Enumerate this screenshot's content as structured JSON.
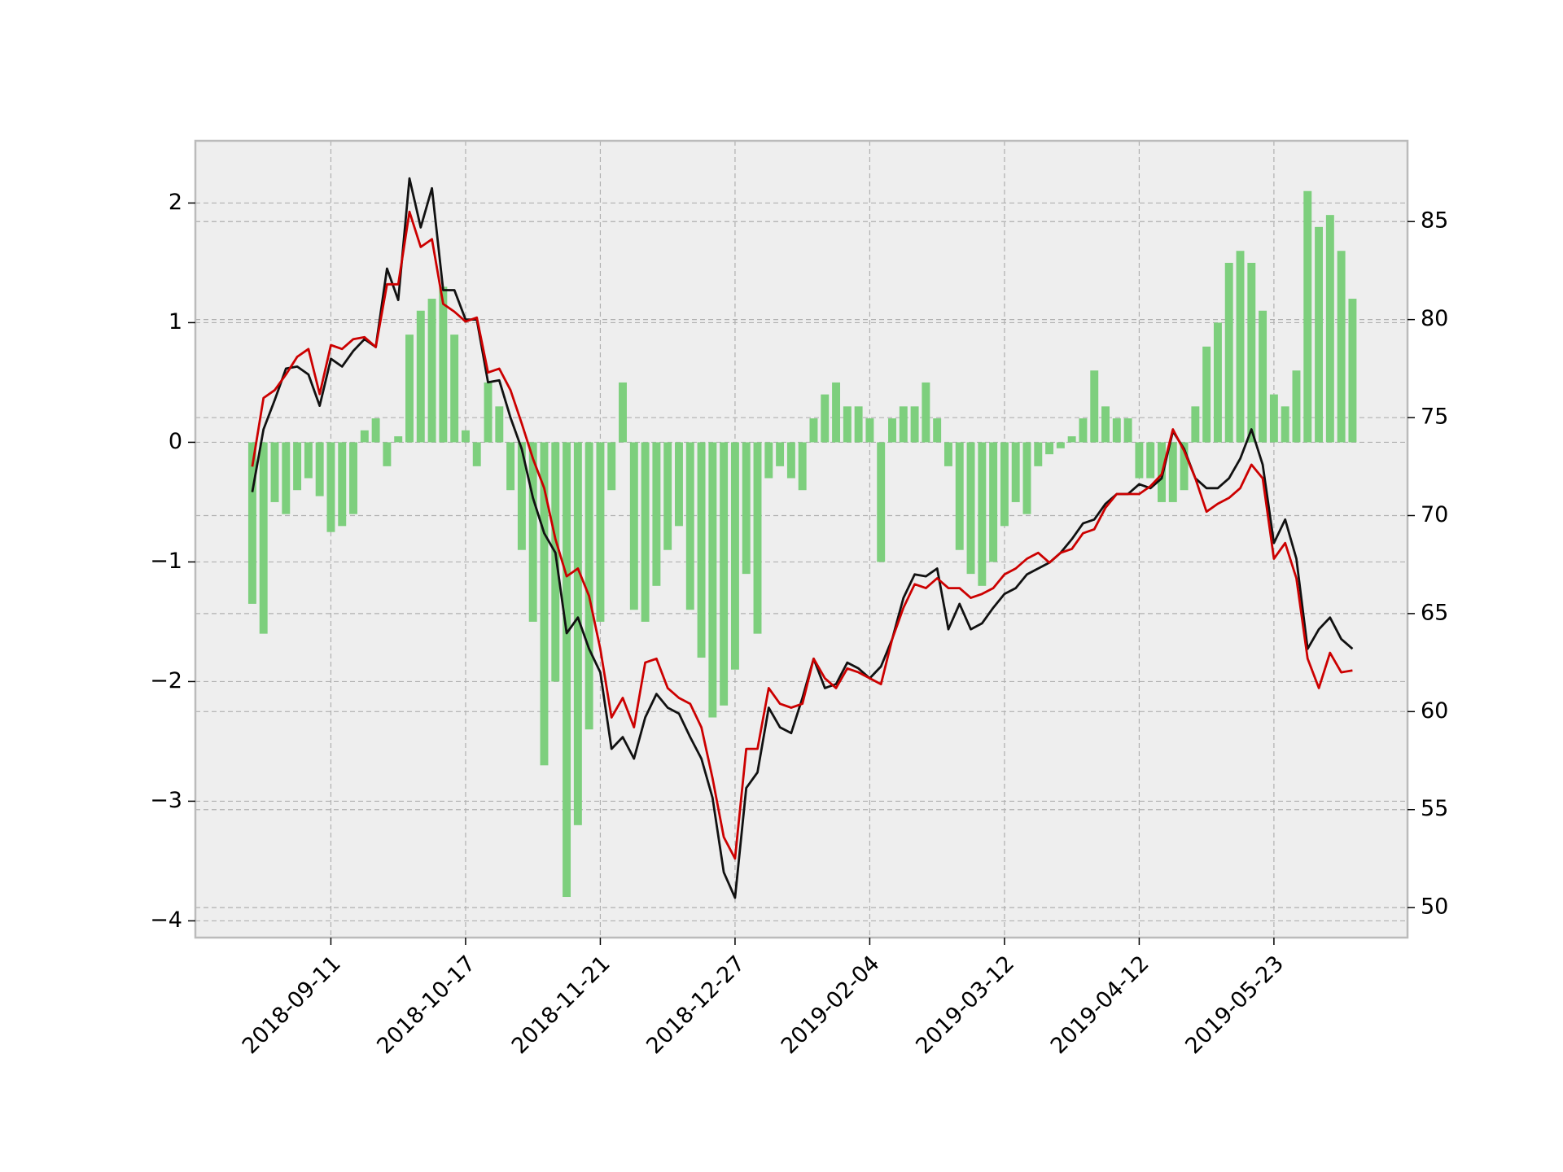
{
  "chart_data": {
    "type": "combo",
    "categories": [
      null,
      null,
      null,
      null,
      null,
      null,
      null,
      "2018-09-11",
      null,
      null,
      null,
      null,
      null,
      null,
      null,
      null,
      null,
      null,
      null,
      "2018-10-17",
      null,
      null,
      null,
      null,
      null,
      null,
      null,
      null,
      null,
      null,
      null,
      "2018-11-21",
      null,
      null,
      null,
      null,
      null,
      null,
      null,
      null,
      null,
      null,
      null,
      "2018-12-27",
      null,
      null,
      null,
      null,
      null,
      null,
      null,
      null,
      null,
      null,
      null,
      "2019-02-04",
      null,
      null,
      null,
      null,
      null,
      null,
      null,
      null,
      null,
      null,
      null,
      "2019-03-12",
      null,
      null,
      null,
      null,
      null,
      null,
      null,
      null,
      null,
      null,
      null,
      "2019-04-12",
      null,
      null,
      null,
      null,
      null,
      null,
      null,
      null,
      null,
      null,
      null,
      "2019-05-23",
      null,
      null,
      null,
      null,
      null,
      null,
      null
    ],
    "ylim": [
      -4.14,
      2.52
    ],
    "yticks": [
      {
        "value": -4,
        "label": "−4"
      },
      {
        "value": -3,
        "label": "−3"
      },
      {
        "value": -2,
        "label": "−2"
      },
      {
        "value": -1,
        "label": "−1"
      },
      0,
      1,
      2
    ],
    "y2lim": [
      48.47,
      89.12
    ],
    "y2ticks": [
      50,
      55,
      60,
      65,
      70,
      75,
      80,
      85
    ],
    "grid": true,
    "series": [
      {
        "type": "bar",
        "color": "#7dcf7d",
        "values": [
          -1.35,
          -1.6,
          -0.5,
          -0.6,
          -0.4,
          -0.3,
          -0.45,
          -0.75,
          -0.7,
          -0.6,
          0.1,
          0.2,
          -0.2,
          0.05,
          0.9,
          1.1,
          1.2,
          1.3,
          0.9,
          0.1,
          -0.2,
          0.5,
          0.3,
          -0.4,
          -0.9,
          -1.5,
          -2.7,
          -2.0,
          -3.8,
          -3.2,
          -2.4,
          -1.5,
          -0.4,
          0.5,
          -1.4,
          -1.5,
          -1.2,
          -0.9,
          -0.7,
          -1.4,
          -1.8,
          -2.3,
          -2.2,
          -1.9,
          -1.1,
          -1.6,
          -0.3,
          -0.2,
          -0.3,
          -0.4,
          0.2,
          0.4,
          0.5,
          0.3,
          0.3,
          0.2,
          -1.0,
          0.2,
          0.3,
          0.3,
          0.5,
          0.2,
          -0.2,
          -0.9,
          -1.1,
          -1.2,
          -1.0,
          -0.7,
          -0.5,
          -0.6,
          -0.2,
          -0.1,
          -0.05,
          0.05,
          0.2,
          0.6,
          0.3,
          0.2,
          0.2,
          -0.3,
          -0.3,
          -0.5,
          -0.5,
          -0.4,
          0.3,
          0.8,
          1.0,
          1.5,
          1.6,
          1.5,
          1.1,
          0.4,
          0.3,
          0.6,
          2.1,
          1.8,
          1.9,
          1.6,
          1.2
        ]
      },
      {
        "type": "line",
        "axis": "y2",
        "color": "#111111",
        "values": [
          71.2,
          74.4,
          75.9,
          77.5,
          77.6,
          77.2,
          75.6,
          78.0,
          77.6,
          78.4,
          79.0,
          78.6,
          82.6,
          81.0,
          87.2,
          84.7,
          86.7,
          81.5,
          81.5,
          80.0,
          80.0,
          76.8,
          76.9,
          75.0,
          73.4,
          70.9,
          69.1,
          68.1,
          64.0,
          64.8,
          63.2,
          62.0,
          58.1,
          58.7,
          57.6,
          59.7,
          60.9,
          60.2,
          59.9,
          58.7,
          57.6,
          55.6,
          51.8,
          50.5,
          56.1,
          56.9,
          60.2,
          59.2,
          58.9,
          60.7,
          62.7,
          61.2,
          61.4,
          62.5,
          62.2,
          61.7,
          62.3,
          63.7,
          65.8,
          67.0,
          66.9,
          67.3,
          64.2,
          65.5,
          64.2,
          64.5,
          65.3,
          66.0,
          66.3,
          67.0,
          67.3,
          67.6,
          68.1,
          68.8,
          69.6,
          69.8,
          70.6,
          71.1,
          71.1,
          71.6,
          71.4,
          71.9,
          74.3,
          73.4,
          71.9,
          71.4,
          71.4,
          71.9,
          72.9,
          74.4,
          72.6,
          68.6,
          69.8,
          67.8,
          63.2,
          64.2,
          64.8,
          63.7,
          63.2
        ]
      },
      {
        "type": "line",
        "axis": "y2",
        "color": "#cc0000",
        "values": [
          72.5,
          76.0,
          76.4,
          77.2,
          78.1,
          78.5,
          76.2,
          78.7,
          78.5,
          79.0,
          79.1,
          78.6,
          81.8,
          81.8,
          85.5,
          83.7,
          84.1,
          80.8,
          80.4,
          79.9,
          80.1,
          77.3,
          77.5,
          76.4,
          74.7,
          72.9,
          71.4,
          68.8,
          66.9,
          67.3,
          65.9,
          63.2,
          59.7,
          60.7,
          59.2,
          62.5,
          62.7,
          61.2,
          60.7,
          60.4,
          59.2,
          56.6,
          53.6,
          52.5,
          58.1,
          58.1,
          61.2,
          60.4,
          60.2,
          60.4,
          62.7,
          61.7,
          61.2,
          62.2,
          62.0,
          61.7,
          61.4,
          63.7,
          65.3,
          66.5,
          66.3,
          66.8,
          66.3,
          66.3,
          65.8,
          66.0,
          66.3,
          67.0,
          67.3,
          67.8,
          68.1,
          67.6,
          68.1,
          68.3,
          69.1,
          69.3,
          70.4,
          71.1,
          71.1,
          71.1,
          71.5,
          72.1,
          74.4,
          73.3,
          71.9,
          70.2,
          70.6,
          70.9,
          71.4,
          72.6,
          71.9,
          67.8,
          68.6,
          66.8,
          62.7,
          61.2,
          63.0,
          62.0,
          62.1
        ]
      }
    ]
  }
}
